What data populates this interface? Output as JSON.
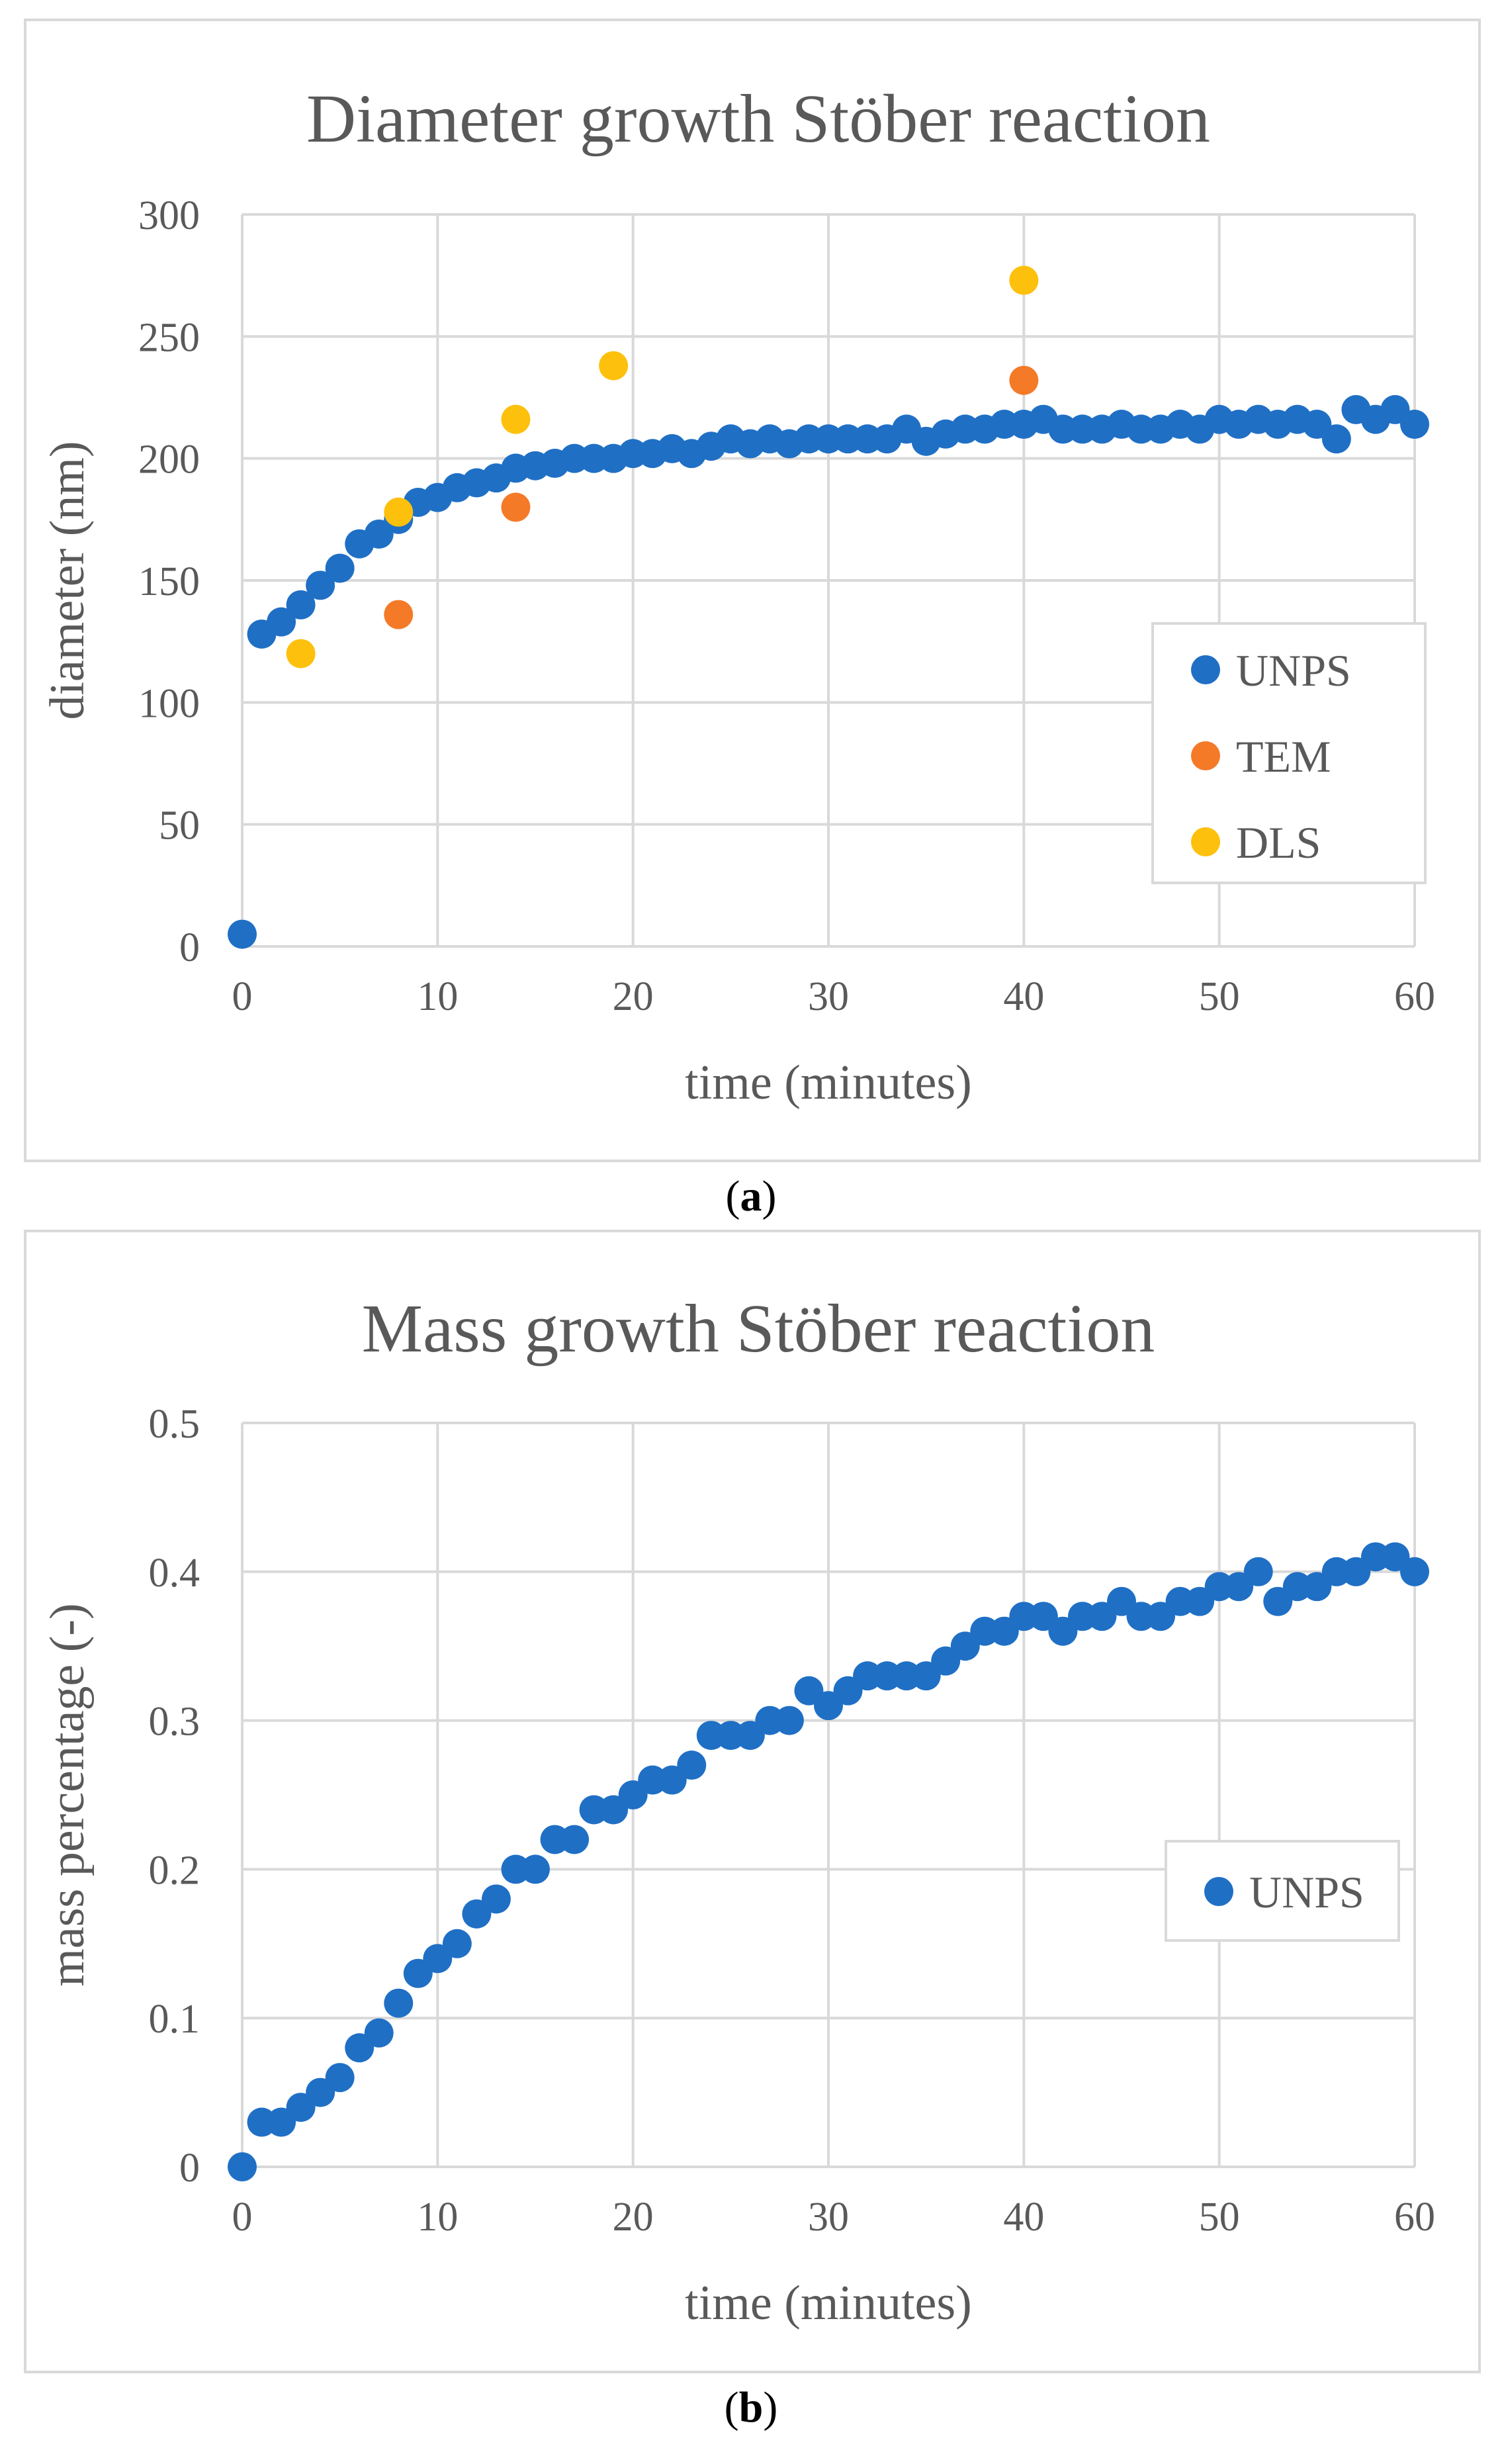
{
  "colors": {
    "unps": "#1f6fc5",
    "tem": "#f47a28",
    "dls": "#fdc00d",
    "grid": "#d9d9d9",
    "text": "#595959",
    "title": "#595959"
  },
  "captions": {
    "a": "a",
    "b": "b"
  },
  "chart_data": [
    {
      "type": "scatter",
      "title": "Diameter growth Stöber reaction",
      "xlabel": "time (minutes)",
      "ylabel": "diameter (nm)",
      "xlim": [
        0,
        60
      ],
      "ylim": [
        0,
        300
      ],
      "xticks": [
        0,
        10,
        20,
        30,
        40,
        50,
        60
      ],
      "yticks": [
        0,
        50,
        100,
        150,
        200,
        250,
        300
      ],
      "grid": true,
      "legend_position": "right",
      "series": [
        {
          "name": "UNPS",
          "color_key": "unps",
          "x": [
            0,
            1,
            2,
            3,
            4,
            5,
            6,
            7,
            8,
            9,
            10,
            11,
            12,
            13,
            14,
            15,
            16,
            17,
            18,
            19,
            20,
            21,
            22,
            23,
            24,
            25,
            26,
            27,
            28,
            29,
            30,
            31,
            32,
            33,
            34,
            35,
            36,
            37,
            38,
            39,
            40,
            41,
            42,
            43,
            44,
            45,
            46,
            47,
            48,
            49,
            50,
            51,
            52,
            53,
            54,
            55,
            56,
            57,
            58,
            59,
            60
          ],
          "y": [
            5,
            128,
            133,
            140,
            148,
            155,
            165,
            169,
            175,
            182,
            184,
            188,
            190,
            192,
            196,
            197,
            198,
            200,
            200,
            200,
            202,
            202,
            204,
            202,
            205,
            208,
            206,
            208,
            206,
            208,
            208,
            208,
            208,
            208,
            212,
            207,
            210,
            212,
            212,
            214,
            214,
            216,
            212,
            212,
            212,
            214,
            212,
            212,
            214,
            212,
            216,
            214,
            216,
            214,
            216,
            214,
            208,
            220,
            216,
            220,
            214
          ]
        },
        {
          "name": "TEM",
          "color_key": "tem",
          "x": [
            8,
            14,
            40
          ],
          "y": [
            136,
            180,
            232
          ]
        },
        {
          "name": "DLS",
          "color_key": "dls",
          "x": [
            3,
            8,
            14,
            19,
            40
          ],
          "y": [
            120,
            178,
            216,
            238,
            273
          ]
        }
      ]
    },
    {
      "type": "scatter",
      "title": "Mass growth Stöber reaction",
      "xlabel": "time (minutes)",
      "ylabel": "mass percentage (-)",
      "xlim": [
        0,
        60
      ],
      "ylim": [
        0,
        0.5
      ],
      "xticks": [
        0,
        10,
        20,
        30,
        40,
        50,
        60
      ],
      "yticks": [
        0,
        0.1,
        0.2,
        0.3,
        0.4,
        0.5
      ],
      "grid": true,
      "legend_position": "right",
      "series": [
        {
          "name": "UNPS",
          "color_key": "unps",
          "x": [
            0,
            1,
            2,
            3,
            4,
            5,
            6,
            7,
            8,
            9,
            10,
            11,
            12,
            13,
            14,
            15,
            16,
            17,
            18,
            19,
            20,
            21,
            22,
            23,
            24,
            25,
            26,
            27,
            28,
            29,
            30,
            31,
            32,
            33,
            34,
            35,
            36,
            37,
            38,
            39,
            40,
            41,
            42,
            43,
            44,
            45,
            46,
            47,
            48,
            49,
            50,
            51,
            52,
            53,
            54,
            55,
            56,
            57,
            58,
            59,
            60
          ],
          "y": [
            0,
            0.03,
            0.03,
            0.04,
            0.05,
            0.06,
            0.08,
            0.09,
            0.11,
            0.13,
            0.14,
            0.15,
            0.17,
            0.18,
            0.2,
            0.2,
            0.22,
            0.22,
            0.24,
            0.24,
            0.25,
            0.26,
            0.26,
            0.27,
            0.29,
            0.29,
            0.29,
            0.3,
            0.3,
            0.32,
            0.31,
            0.32,
            0.33,
            0.33,
            0.33,
            0.33,
            0.34,
            0.35,
            0.36,
            0.36,
            0.37,
            0.37,
            0.36,
            0.37,
            0.37,
            0.38,
            0.37,
            0.37,
            0.38,
            0.38,
            0.39,
            0.39,
            0.4,
            0.38,
            0.39,
            0.39,
            0.4,
            0.4,
            0.41,
            0.41,
            0.4
          ]
        }
      ]
    }
  ]
}
